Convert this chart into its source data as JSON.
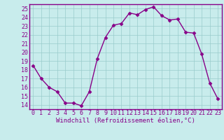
{
  "x": [
    0,
    1,
    2,
    3,
    4,
    5,
    6,
    7,
    8,
    9,
    10,
    11,
    12,
    13,
    14,
    15,
    16,
    17,
    18,
    19,
    20,
    21,
    22,
    23
  ],
  "y": [
    18.5,
    17.0,
    16.0,
    15.5,
    14.2,
    14.2,
    13.9,
    15.5,
    19.3,
    21.7,
    23.1,
    23.3,
    24.5,
    24.3,
    24.9,
    25.2,
    24.2,
    23.7,
    23.8,
    22.3,
    22.2,
    19.8,
    16.5,
    14.7
  ],
  "line_color": "#880088",
  "marker": "D",
  "marker_size": 2.5,
  "bg_color": "#c8ecec",
  "grid_color": "#99cccc",
  "xlabel": "Windchill (Refroidissement éolien,°C)",
  "xlim": [
    -0.5,
    23.5
  ],
  "ylim": [
    13.5,
    25.5
  ],
  "yticks": [
    14,
    15,
    16,
    17,
    18,
    19,
    20,
    21,
    22,
    23,
    24,
    25
  ],
  "xticks": [
    0,
    1,
    2,
    3,
    4,
    5,
    6,
    7,
    8,
    9,
    10,
    11,
    12,
    13,
    14,
    15,
    16,
    17,
    18,
    19,
    20,
    21,
    22,
    23
  ],
  "xlabel_fontsize": 6.5,
  "tick_fontsize": 6.0,
  "line_width": 1.0,
  "spine_color": "#880088",
  "axis_label_color": "#880088",
  "tick_label_color": "#880088"
}
